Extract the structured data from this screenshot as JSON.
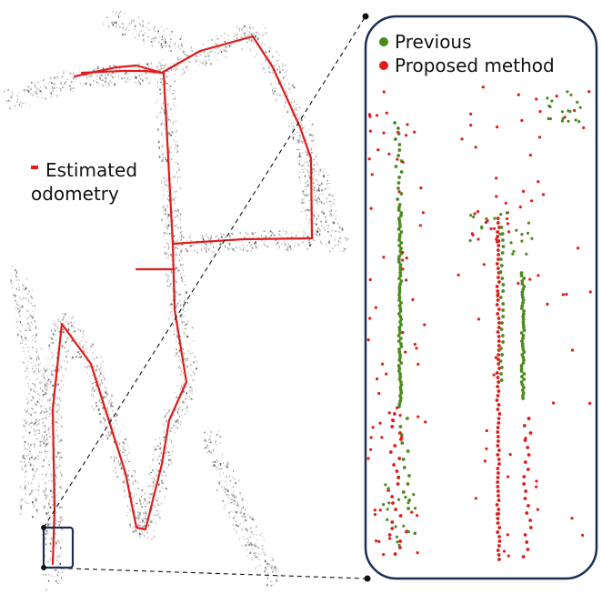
{
  "left_legend": {
    "line1": "Estimated",
    "line2": "odometry",
    "color": "#e01b1b"
  },
  "zoom_legend": {
    "previous": "Previous",
    "previous_color": "#4b8a1e",
    "proposed": "Proposed method",
    "proposed_color": "#e01b1b"
  },
  "frame_color": "#1b2f55"
}
